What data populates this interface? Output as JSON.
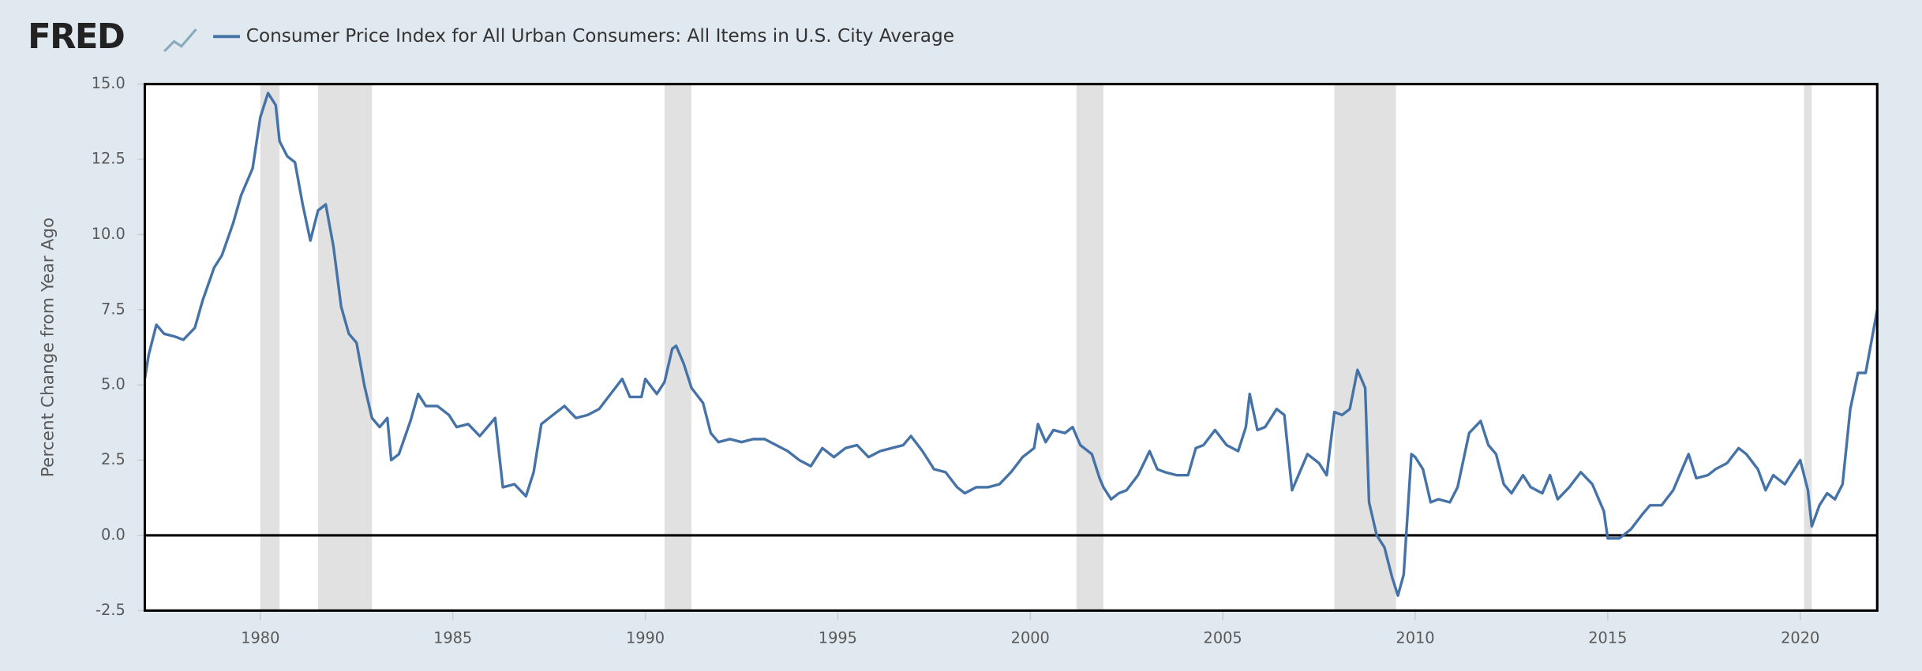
{
  "chart_data": {
    "type": "line",
    "brand": "FRED",
    "ylabel": "Percent Change from Year Ago",
    "xlim": [
      1977,
      2022
    ],
    "ylim": [
      -2.5,
      15
    ],
    "xticks": [
      1980,
      1985,
      1990,
      1995,
      2000,
      2005,
      2010,
      2015,
      2020
    ],
    "yticks": [
      {
        "value": -2.5,
        "label": "-2.5"
      },
      {
        "value": 0,
        "label": "0.0"
      },
      {
        "value": 2.5,
        "label": "2.5"
      },
      {
        "value": 5,
        "label": "5.0"
      },
      {
        "value": 7.5,
        "label": "7.5"
      },
      {
        "value": 10,
        "label": "10.0"
      },
      {
        "value": 12.5,
        "label": "12.5"
      },
      {
        "value": 15,
        "label": "15.0"
      }
    ],
    "recessions": [
      [
        1980.0,
        1980.5
      ],
      [
        1981.5,
        1982.9
      ],
      [
        1990.5,
        1991.2
      ],
      [
        2001.2,
        2001.9
      ],
      [
        2007.9,
        2009.5
      ],
      [
        2020.1,
        2020.3
      ]
    ],
    "recession_color": "#e1e1e1",
    "x": [
      1977.0,
      1977.1,
      1977.3,
      1977.5,
      1977.8,
      1978.0,
      1978.3,
      1978.5,
      1978.8,
      1979.0,
      1979.3,
      1979.5,
      1979.8,
      1980.0,
      1980.2,
      1980.4,
      1980.5,
      1980.7,
      1980.9,
      1981.1,
      1981.3,
      1981.5,
      1981.7,
      1981.9,
      1982.1,
      1982.3,
      1982.5,
      1982.7,
      1982.9,
      1983.1,
      1983.3,
      1983.4,
      1983.6,
      1983.9,
      1984.1,
      1984.3,
      1984.6,
      1984.9,
      1985.1,
      1985.4,
      1985.7,
      1985.9,
      1986.1,
      1986.3,
      1986.6,
      1986.9,
      1987.1,
      1987.3,
      1987.6,
      1987.9,
      1988.2,
      1988.5,
      1988.8,
      1989.1,
      1989.4,
      1989.6,
      1989.9,
      1990.0,
      1990.3,
      1990.5,
      1990.7,
      1990.8,
      1991.0,
      1991.2,
      1991.5,
      1991.7,
      1991.9,
      1992.2,
      1992.5,
      1992.8,
      1993.1,
      1993.4,
      1993.7,
      1994.0,
      1994.3,
      1994.6,
      1994.9,
      1995.2,
      1995.5,
      1995.8,
      1996.1,
      1996.4,
      1996.7,
      1996.9,
      1997.2,
      1997.5,
      1997.8,
      1998.1,
      1998.3,
      1998.6,
      1998.9,
      1999.2,
      1999.5,
      1999.8,
      2000.1,
      2000.2,
      2000.4,
      2000.6,
      2000.9,
      2001.1,
      2001.3,
      2001.6,
      2001.8,
      2001.9,
      2002.1,
      2002.3,
      2002.5,
      2002.8,
      2003.1,
      2003.3,
      2003.5,
      2003.8,
      2004.1,
      2004.3,
      2004.5,
      2004.8,
      2005.1,
      2005.4,
      2005.6,
      2005.7,
      2005.9,
      2006.1,
      2006.4,
      2006.6,
      2006.8,
      2007.0,
      2007.2,
      2007.5,
      2007.7,
      2007.9,
      2008.1,
      2008.3,
      2008.5,
      2008.7,
      2008.8,
      2009.0,
      2009.2,
      2009.4,
      2009.55,
      2009.7,
      2009.9,
      2010.0,
      2010.2,
      2010.4,
      2010.6,
      2010.9,
      2011.1,
      2011.4,
      2011.7,
      2011.9,
      2012.1,
      2012.3,
      2012.5,
      2012.8,
      2013.0,
      2013.3,
      2013.5,
      2013.7,
      2014.0,
      2014.3,
      2014.6,
      2014.9,
      2015.0,
      2015.3,
      2015.6,
      2015.9,
      2016.1,
      2016.4,
      2016.7,
      2016.9,
      2017.1,
      2017.3,
      2017.6,
      2017.8,
      2018.1,
      2018.4,
      2018.6,
      2018.9,
      2019.1,
      2019.3,
      2019.6,
      2019.9,
      2020.0,
      2020.2,
      2020.3,
      2020.5,
      2020.7,
      2020.9,
      2021.1,
      2021.3,
      2021.5,
      2021.7,
      2021.9,
      2022.0
    ],
    "series": [
      {
        "name": "Consumer Price Index for All Urban Consumers: All Items in U.S. City Average",
        "color": "#4572a7",
        "values": [
          5.2,
          6.0,
          7.0,
          6.7,
          6.6,
          6.5,
          6.9,
          7.8,
          8.9,
          9.3,
          10.4,
          11.3,
          12.2,
          13.9,
          14.7,
          14.3,
          13.1,
          12.6,
          12.4,
          11.0,
          9.8,
          10.8,
          11.0,
          9.6,
          7.6,
          6.7,
          6.4,
          5.0,
          3.9,
          3.6,
          3.9,
          2.5,
          2.7,
          3.8,
          4.7,
          4.3,
          4.3,
          4.0,
          3.6,
          3.7,
          3.3,
          3.6,
          3.9,
          1.6,
          1.7,
          1.3,
          2.1,
          3.7,
          4.0,
          4.3,
          3.9,
          4.0,
          4.2,
          4.7,
          5.2,
          4.6,
          4.6,
          5.2,
          4.7,
          5.1,
          6.2,
          6.3,
          5.7,
          4.9,
          4.4,
          3.4,
          3.1,
          3.2,
          3.1,
          3.2,
          3.2,
          3.0,
          2.8,
          2.5,
          2.3,
          2.9,
          2.6,
          2.9,
          3.0,
          2.6,
          2.8,
          2.9,
          3.0,
          3.3,
          2.8,
          2.2,
          2.1,
          1.6,
          1.4,
          1.6,
          1.6,
          1.7,
          2.1,
          2.6,
          2.9,
          3.7,
          3.1,
          3.5,
          3.4,
          3.6,
          3.0,
          2.7,
          1.9,
          1.6,
          1.2,
          1.4,
          1.5,
          2.0,
          2.8,
          2.2,
          2.1,
          2.0,
          2.0,
          2.9,
          3.0,
          3.5,
          3.0,
          2.8,
          3.6,
          4.7,
          3.5,
          3.6,
          4.2,
          4.0,
          1.5,
          2.1,
          2.7,
          2.4,
          2.0,
          4.1,
          4.0,
          4.2,
          5.5,
          4.9,
          1.1,
          0.0,
          -0.4,
          -1.4,
          -2.0,
          -1.3,
          2.7,
          2.6,
          2.2,
          1.1,
          1.2,
          1.1,
          1.6,
          3.4,
          3.8,
          3.0,
          2.7,
          1.7,
          1.4,
          2.0,
          1.6,
          1.4,
          2.0,
          1.2,
          1.6,
          2.1,
          1.7,
          0.8,
          -0.1,
          -0.1,
          0.2,
          0.7,
          1.0,
          1.0,
          1.5,
          2.1,
          2.7,
          1.9,
          2.0,
          2.2,
          2.4,
          2.9,
          2.7,
          2.2,
          1.5,
          2.0,
          1.7,
          2.3,
          2.5,
          1.5,
          0.3,
          1.0,
          1.4,
          1.2,
          1.7,
          4.2,
          5.4,
          5.4,
          6.8,
          7.5
        ]
      }
    ]
  }
}
